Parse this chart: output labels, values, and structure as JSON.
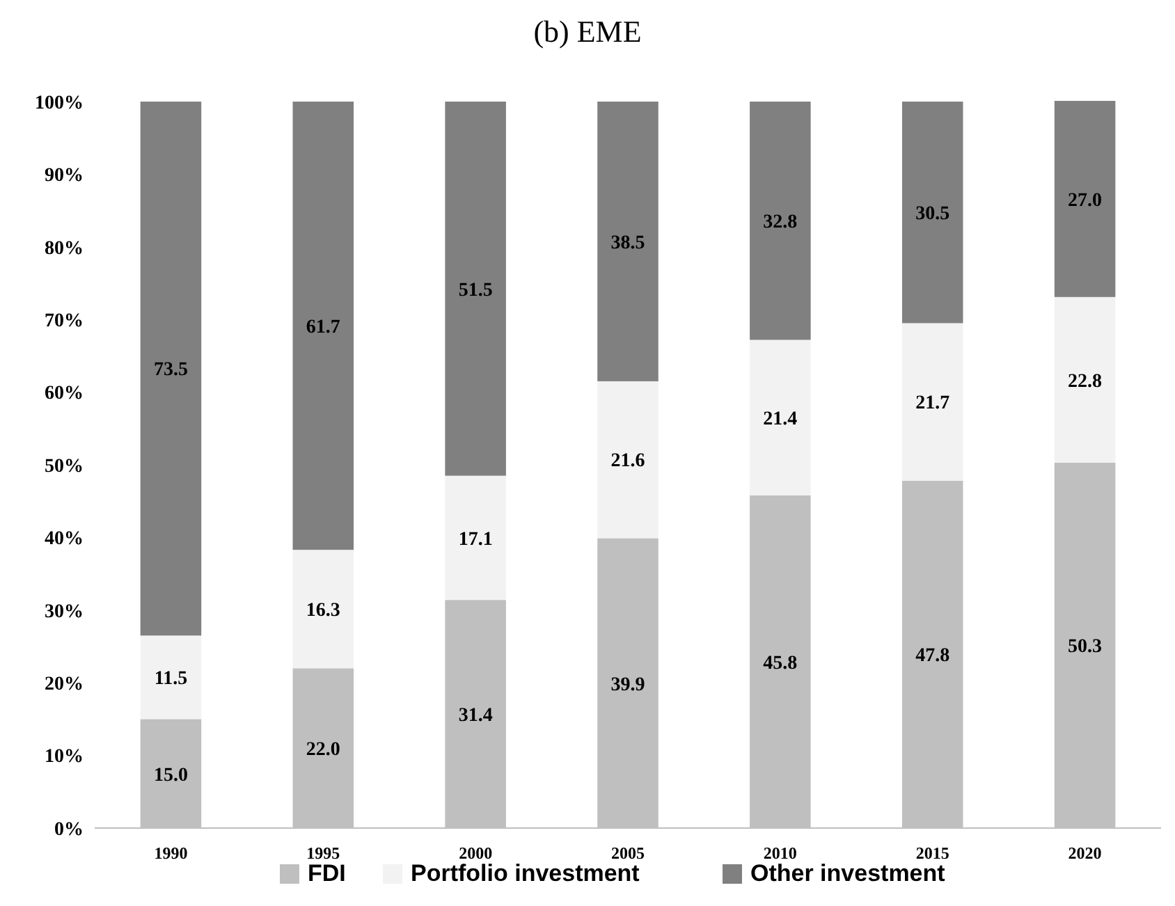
{
  "chart_data": {
    "type": "bar",
    "title": "(b) EME",
    "stacked": true,
    "categories": [
      "1990",
      "1995",
      "2000",
      "2005",
      "2010",
      "2015",
      "2020"
    ],
    "series": [
      {
        "name": "FDI",
        "color": "#bfbfbf",
        "values": [
          15.0,
          22.0,
          31.4,
          39.9,
          45.8,
          47.8,
          50.3
        ],
        "value_labels": [
          "15.0",
          "22.0",
          "31.4",
          "39.9",
          "45.8",
          "47.8",
          "50.3"
        ]
      },
      {
        "name": "Portfolio investment",
        "color": "#f2f2f2",
        "values": [
          11.5,
          16.3,
          17.1,
          21.6,
          21.4,
          21.7,
          22.8
        ],
        "value_labels": [
          "11.5",
          "16.3",
          "17.1",
          "21.6",
          "21.4",
          "21.7",
          "22.8"
        ]
      },
      {
        "name": "Other investment",
        "color": "#808080",
        "values": [
          73.5,
          61.7,
          51.5,
          38.5,
          32.8,
          30.5,
          27.0
        ],
        "value_labels": [
          "73.5",
          "61.7",
          "51.5",
          "38.5",
          "32.8",
          "30.5",
          "27.0"
        ]
      }
    ],
    "ylim": [
      0,
      100
    ],
    "yticks": [
      {
        "value": 0,
        "label": "0%"
      },
      {
        "value": 10,
        "label": "10%"
      },
      {
        "value": 20,
        "label": "20%"
      },
      {
        "value": 30,
        "label": "30%"
      },
      {
        "value": 40,
        "label": "40%"
      },
      {
        "value": 50,
        "label": "50%"
      },
      {
        "value": 60,
        "label": "60%"
      },
      {
        "value": 70,
        "label": "70%"
      },
      {
        "value": 80,
        "label": "80%"
      },
      {
        "value": 90,
        "label": "90%"
      },
      {
        "value": 100,
        "label": "100%"
      }
    ],
    "grid": false,
    "legend": "bottom"
  }
}
